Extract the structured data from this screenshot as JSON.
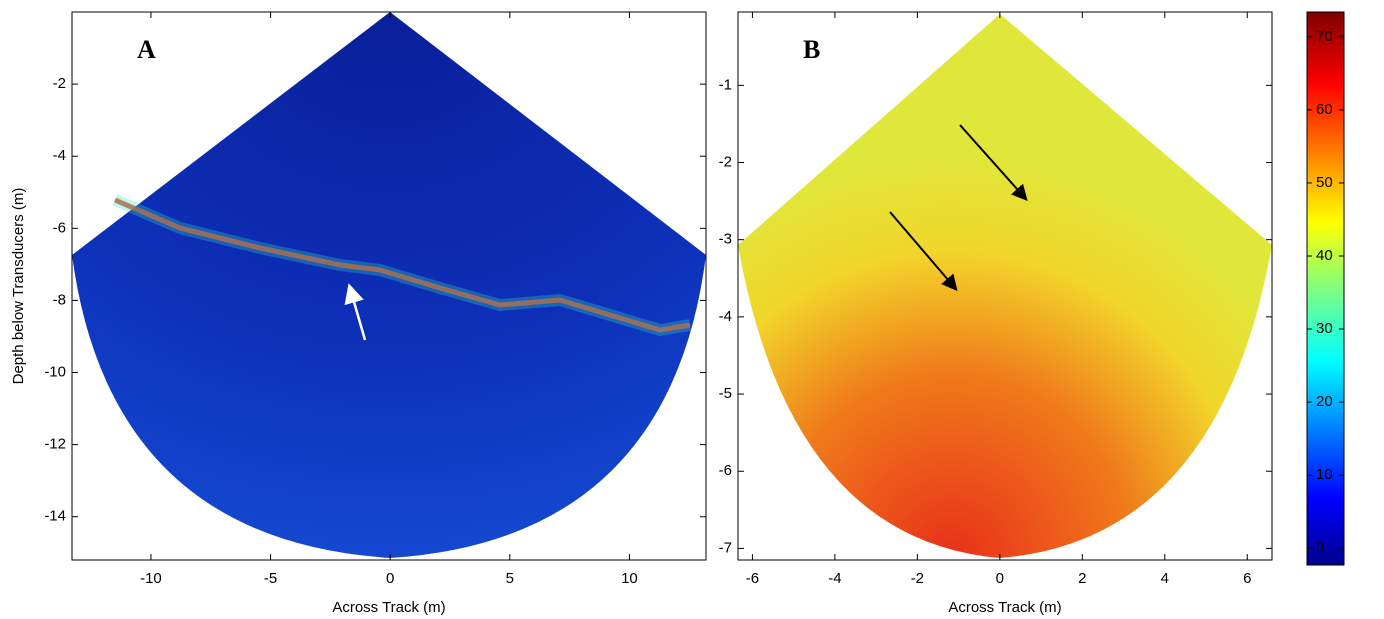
{
  "chart_data": [
    {
      "type": "image",
      "label": "A",
      "xlabel": "Across Track (m)",
      "ylabel": "Depth below Transducers (m)",
      "xlim": [
        -13.3,
        13.2
      ],
      "ylim": [
        -15.2,
        0
      ],
      "xticks": [
        -10,
        -5,
        0,
        5,
        10
      ],
      "yticks": [
        -14,
        -12,
        -10,
        -8,
        -6,
        -4,
        -2
      ]
    },
    {
      "type": "image",
      "label": "B",
      "xlabel": "Across Track (m)",
      "xlim": [
        -6.35,
        6.6
      ],
      "ylim": [
        -7.15,
        -0.05
      ],
      "xticks": [
        -6,
        -4,
        -2,
        0,
        2,
        4,
        6
      ],
      "yticks": [
        -7,
        -6,
        -5,
        -4,
        -3,
        -2,
        -1
      ]
    },
    {
      "type": "colorbar",
      "ylim": [
        -2.3,
        73.4
      ],
      "yticks": [
        0,
        10,
        20,
        30,
        40,
        50,
        60,
        70
      ]
    }
  ]
}
